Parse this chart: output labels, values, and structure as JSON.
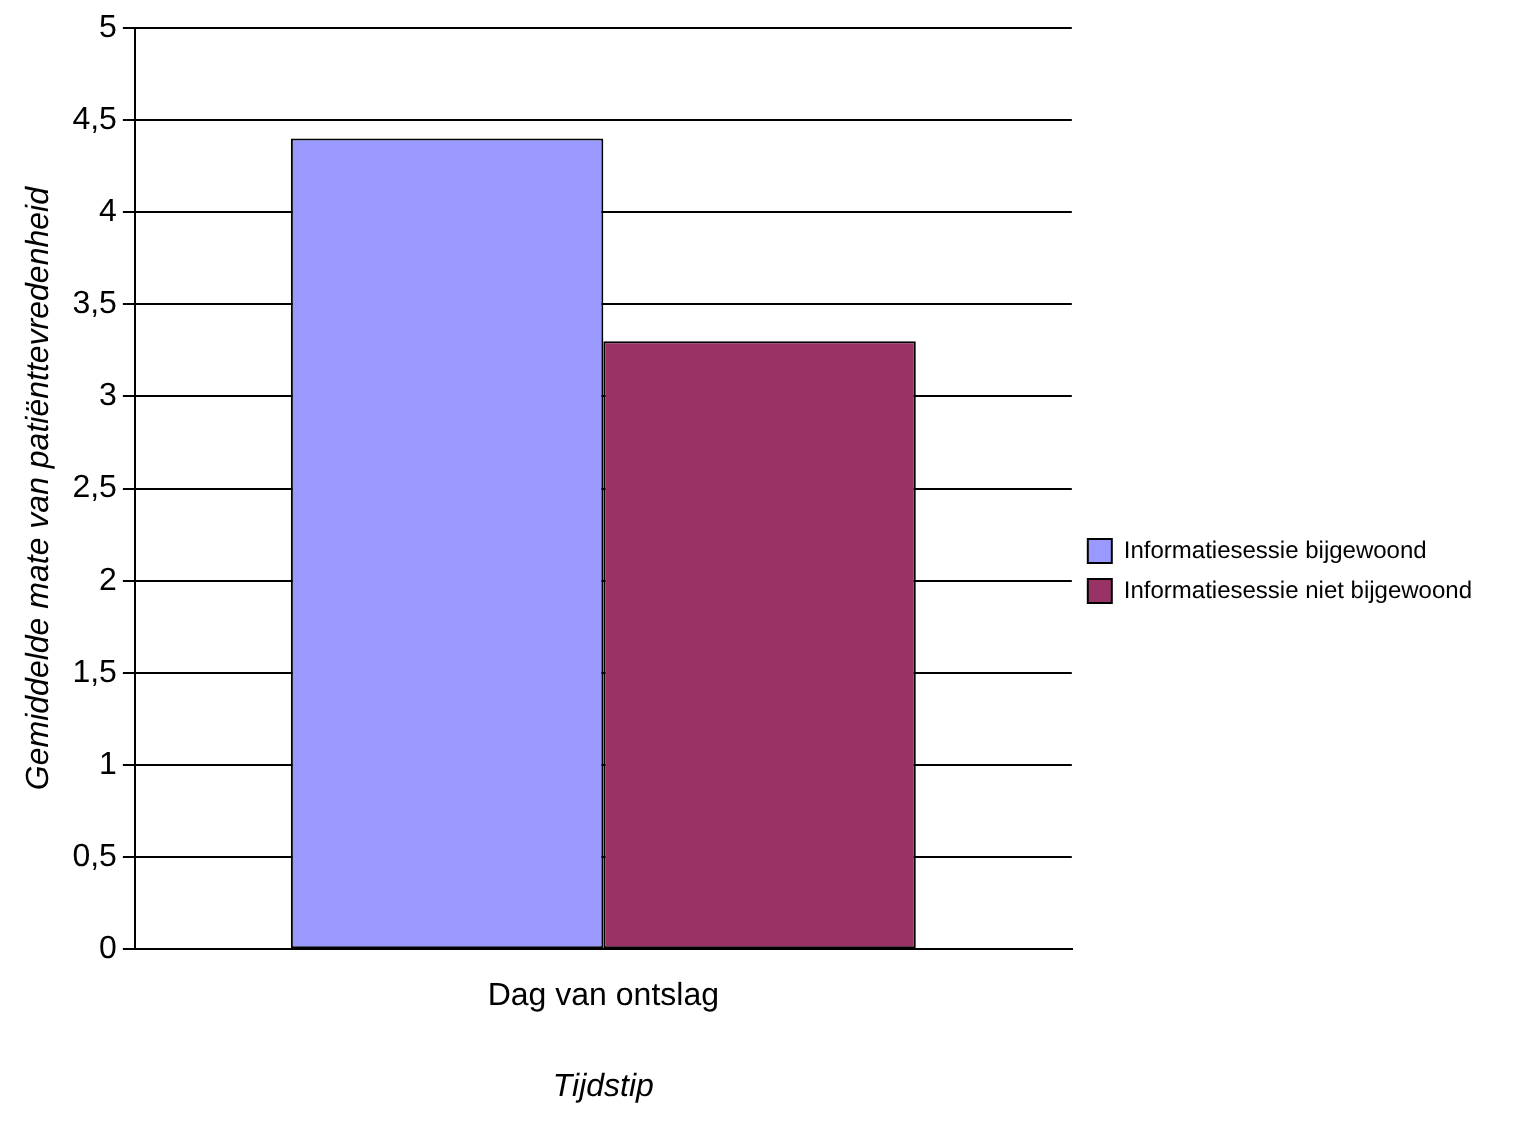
{
  "chart_data": {
    "type": "bar",
    "xlabel": "Tijdstip",
    "ylabel": "Gemiddelde mate van patiënttevredenheid",
    "categories": [
      "Dag van ontslag"
    ],
    "series": [
      {
        "name": "Informatiesessie bijgewoond",
        "color": "#9999ff",
        "values": [
          4.4
        ]
      },
      {
        "name": "Informatiesessie niet bijgewoond",
        "color": "#993366",
        "values": [
          3.3
        ]
      }
    ],
    "ylim": [
      0,
      5
    ],
    "yticks": [
      0,
      {
        "value": 0.5,
        "label": "0,5"
      },
      1,
      {
        "value": 1.5,
        "label": "1,5"
      },
      2,
      {
        "value": 2.5,
        "label": "2,5"
      },
      3,
      {
        "value": 3.5,
        "label": "3,5"
      },
      4,
      {
        "value": 4.5,
        "label": "4,5"
      },
      5
    ],
    "grid": "y",
    "legend": "right"
  }
}
